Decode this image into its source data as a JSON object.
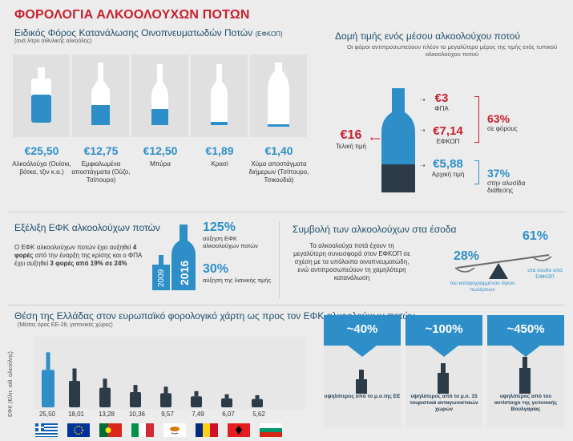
{
  "title": "ΦΟΡΟΛΟΓΙΑ ΑΛΚΟΟΛΟΥΧΩΝ ΠΟΤΩΝ",
  "efkop": {
    "heading": "Ειδικός Φόρος Κατανάλωσης Οινοπνευματωδών Ποτών",
    "heading_abbr": "(ΕΦΚΟΠ)",
    "subheading": "(ανά λίτρο αιθυλικής αλκοόλης)",
    "items": [
      {
        "value": "€25,50",
        "label": "Αλκοόλούχα (Ουίσκι, βότκα, τζιν κ.α.)"
      },
      {
        "value": "€12,75",
        "label": "Εμφιαλωμένα αποστάγματα (Ούζο, Τσίπουρο)"
      },
      {
        "value": "€12,50",
        "label": "Μπύρα"
      },
      {
        "value": "€1,89",
        "label": "Κρασί"
      },
      {
        "value": "€1,40",
        "label": "Χύμα αποστάγματα διήμερων (Τσίπουρο, Τσικουδιά)"
      }
    ]
  },
  "price": {
    "heading": "Δομή τιμής ενός μέσου αλκοολούχου ποτού",
    "subheading": "Οι φόροι αντιπροσωπεύουν πλέον το μεγαλύτερο μέρος της τιμής ενός τυπικού αλκοολούχου ποτού",
    "final_value": "€16",
    "final_label": "Τελική τιμή",
    "vat_value": "€3",
    "vat_label": "ΦΠΑ",
    "efkop_value": "€7,14",
    "efkop_label": "ΕΦΚΟΠ",
    "base_value": "€5,88",
    "base_label": "Αρχική τιμή",
    "tax_pct": "63%",
    "tax_label": "σε φόρους",
    "chain_pct": "37%",
    "chain_label": "στην αλυσίδα διάθεσης"
  },
  "evolution": {
    "heading": "Εξέλιξη ΕΦΚ αλκοολούχων ποτών",
    "text_1": "Ο ΕΦΚ αλκοολούχων ποτών έχει αυξηθεί",
    "text_2": "4 φορές",
    "text_3": "από την έναρξη της κρίσης και ο ΦΠΑ έχει αυξηθεί",
    "text_4": "3 φορές από 19% σε 24%",
    "year_2009": "2009",
    "year_2016": "2016",
    "pct_efk": "125%",
    "pct_efk_label": "αύξηση ΕΦΚ αλκοολούχων ποτών",
    "pct_price": "30%",
    "pct_price_label": "αύξηση της λιανικής τιμής"
  },
  "income": {
    "heading": "Συμβολή των αλκοολούχων στα έσοδα",
    "text": "Τα αλκοολούχα ποτά έχουν τη μεγαλύτερη συνεισφορά στον ΕΦΚΟΠ σε σχέση με τα υπόλοιπα οινοπνευματώδη, ενώ αντιπροσωπεύουν τη χαμηλότερη κατανάλωση",
    "pct_volume": "28%",
    "pct_volume_label": "του καταγεγραμμένου όγκου πωλήσεων",
    "pct_revenue": "61%",
    "pct_revenue_label": "στα έσοδα από ΕΦΚΟΠ"
  },
  "europe": {
    "heading": "Θέση της Ελλάδας στον ευρωπαϊκό φορολογικό χάρτη ως προς τον ΕΦΚ αλκοολούχων ποτών",
    "subheading": "(Μέσος όρος ΕΕ-28, γειτονικές χώρες)",
    "axis_label": "ΕΦΚ (€/λιτ. αιθ. αλκοόλης)",
    "values": [
      "25,50",
      "18,01",
      "13,28",
      "10,36",
      "9,57",
      "7,49",
      "6,07",
      "5,62"
    ],
    "flags": [
      "greece-flag",
      "eu-flag",
      "portugal-flag",
      "italy-flag",
      "cyprus-flag",
      "romania-flag",
      "albania-flag",
      "bulgaria-flag"
    ],
    "panels": [
      {
        "pct": "~40%",
        "caption": "υψηλότερος από το μ.ο.της ΕΕ"
      },
      {
        "pct": "~100%",
        "caption": "υψηλότερος από το μ.ο. 15 τουριστικά ανταγωνιστικών χωρών"
      },
      {
        "pct": "~450%",
        "caption": "υψηλότερος από τον αντίστοιχο της γειτονικής Βουλγαρίας"
      }
    ]
  },
  "colors": {
    "red": "#c8202f",
    "blue": "#2e8fc8",
    "navy": "#1f4e6b",
    "bottle_dark": "#2b3b48"
  }
}
